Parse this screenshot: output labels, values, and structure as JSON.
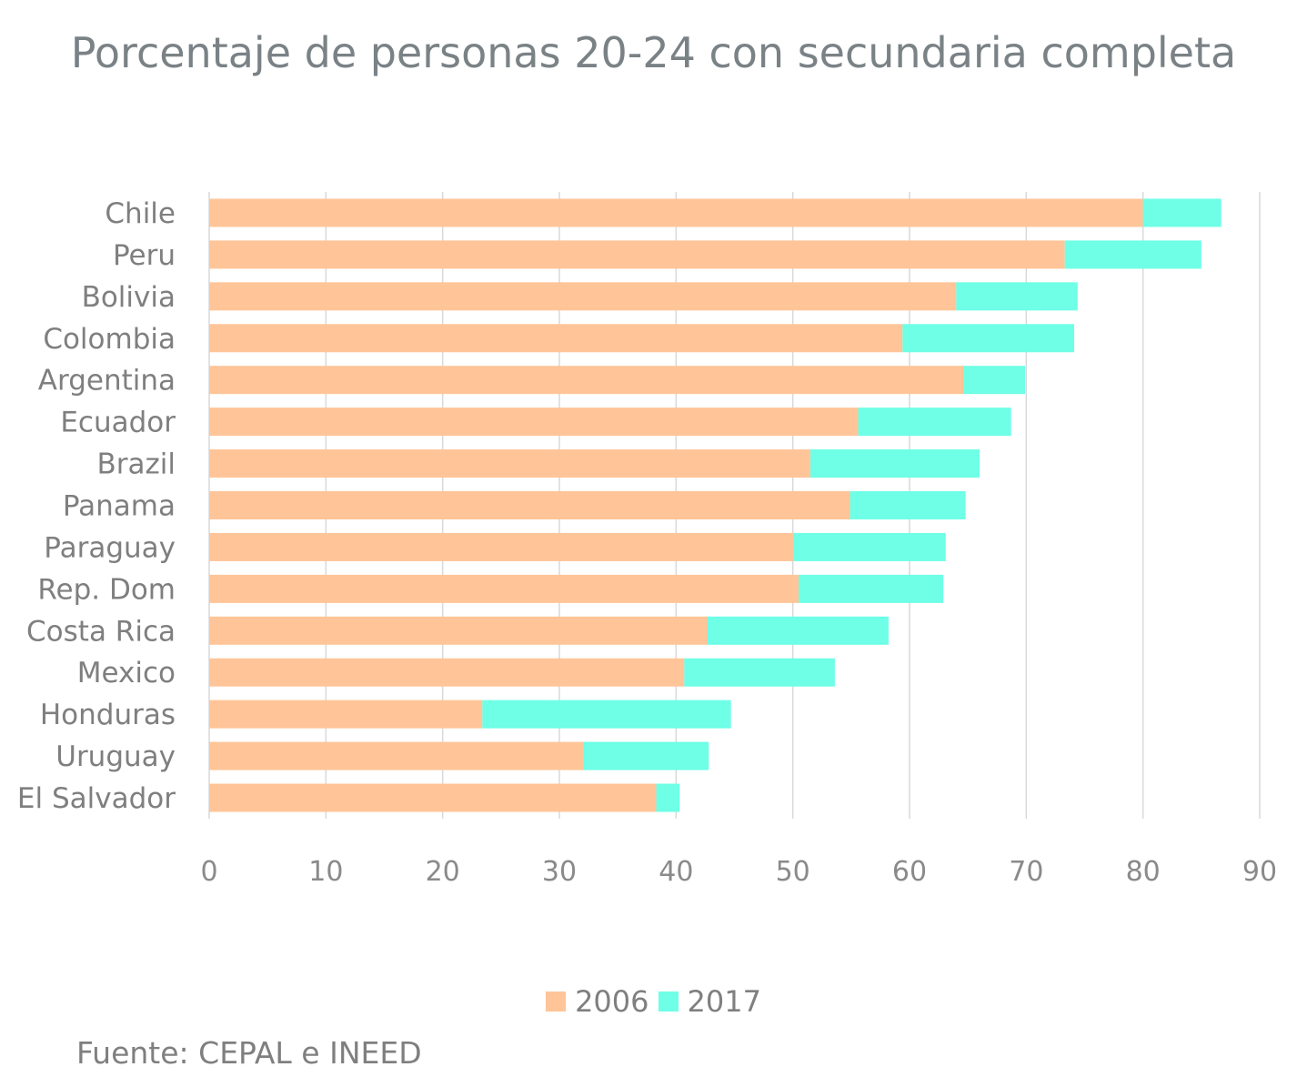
{
  "chart_data": {
    "type": "bar",
    "orientation": "horizontal",
    "stacked": true,
    "title": "Porcentaje de personas 20-24 con secundaria completa",
    "categories": [
      "Chile",
      "Peru",
      "Bolivia",
      "Colombia",
      "Argentina",
      "Ecuador",
      "Brazil",
      "Panama",
      "Paraguay",
      "Rep. Dom",
      "Costa Rica",
      "Mexico",
      "Honduras",
      "Uruguay",
      "El Salvador"
    ],
    "series": [
      {
        "name": "2006",
        "color": "#ffc598",
        "values": [
          80,
          73.3,
          64,
          59.4,
          64.6,
          55.6,
          51.5,
          54.9,
          50.1,
          50.5,
          42.7,
          40.7,
          23.4,
          32.1,
          38.3
        ]
      },
      {
        "name": "2017",
        "color": "#6effe6",
        "values": [
          6.7,
          11.7,
          10.4,
          14.7,
          5.3,
          13.1,
          14.5,
          9.9,
          13.0,
          12.4,
          15.5,
          12.9,
          21.3,
          10.7,
          2.0
        ]
      }
    ],
    "x_ticks": [
      "0",
      "10",
      "20",
      "30",
      "40",
      "50",
      "60",
      "70",
      "80",
      "90"
    ],
    "xlim": [
      0,
      90
    ],
    "grid": true,
    "legend_position": "bottom"
  },
  "source_note": "Fuente: CEPAL e INEED"
}
